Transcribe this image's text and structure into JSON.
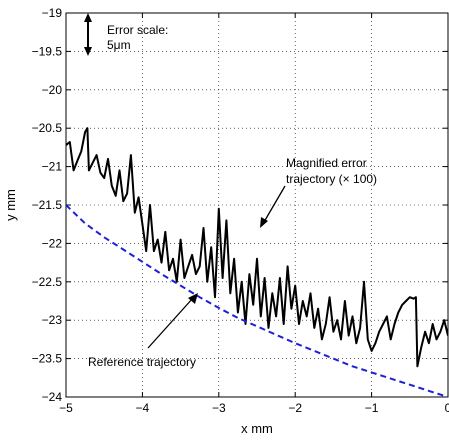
{
  "chart_data": {
    "type": "line",
    "xlabel": "x mm",
    "ylabel": "y mm",
    "xlim": [
      -5,
      0
    ],
    "ylim": [
      -24,
      -19
    ],
    "xticks": [
      -5,
      -4,
      -3,
      -2,
      -1,
      0
    ],
    "xtick_labels": [
      "−5",
      "−4",
      "−3",
      "−2",
      "−1",
      "0"
    ],
    "yticks": [
      -19,
      -19.5,
      -20,
      -20.5,
      -21,
      -21.5,
      -22,
      -22.5,
      -23,
      -23.5,
      -24
    ],
    "ytick_labels": [
      "−19",
      "−19.5",
      "−20",
      "−20.5",
      "−21",
      "−21.5",
      "−22",
      "−22.5",
      "−23",
      "−23.5",
      "−24"
    ],
    "grid": true,
    "series": [
      {
        "style": "solid",
        "color": "#000000",
        "x": [
          -5.0,
          -4.95,
          -4.9,
          -4.85,
          -4.8,
          -4.75,
          -4.72,
          -4.7,
          -4.65,
          -4.6,
          -4.55,
          -4.5,
          -4.45,
          -4.4,
          -4.35,
          -4.3,
          -4.25,
          -4.2,
          -4.15,
          -4.1,
          -4.05,
          -4.0,
          -3.95,
          -3.9,
          -3.85,
          -3.8,
          -3.75,
          -3.7,
          -3.65,
          -3.6,
          -3.55,
          -3.5,
          -3.45,
          -3.4,
          -3.35,
          -3.3,
          -3.25,
          -3.2,
          -3.15,
          -3.1,
          -3.05,
          -3.0,
          -2.95,
          -2.9,
          -2.85,
          -2.8,
          -2.75,
          -2.7,
          -2.65,
          -2.6,
          -2.55,
          -2.5,
          -2.45,
          -2.4,
          -2.35,
          -2.3,
          -2.25,
          -2.2,
          -2.15,
          -2.1,
          -2.05,
          -2.0,
          -1.95,
          -1.9,
          -1.85,
          -1.8,
          -1.75,
          -1.7,
          -1.65,
          -1.6,
          -1.55,
          -1.5,
          -1.45,
          -1.4,
          -1.35,
          -1.3,
          -1.25,
          -1.2,
          -1.15,
          -1.1,
          -1.05,
          -1.0,
          -0.95,
          -0.9,
          -0.85,
          -0.8,
          -0.75,
          -0.7,
          -0.65,
          -0.6,
          -0.55,
          -0.5,
          -0.45,
          -0.42,
          -0.4,
          -0.35,
          -0.3,
          -0.25,
          -0.2,
          -0.15,
          -0.1,
          -0.05,
          0.0
        ],
        "y": [
          -20.72,
          -20.68,
          -21.05,
          -20.92,
          -20.8,
          -20.55,
          -20.5,
          -21.05,
          -20.95,
          -20.85,
          -21.08,
          -21.15,
          -20.9,
          -21.25,
          -21.38,
          -21.05,
          -21.45,
          -21.35,
          -20.85,
          -21.6,
          -21.4,
          -21.75,
          -22.1,
          -21.5,
          -22.1,
          -21.95,
          -22.25,
          -21.85,
          -22.35,
          -22.2,
          -22.5,
          -21.95,
          -22.45,
          -22.3,
          -22.15,
          -22.4,
          -22.3,
          -21.8,
          -22.5,
          -22.05,
          -22.7,
          -21.55,
          -22.45,
          -21.7,
          -22.65,
          -22.2,
          -22.9,
          -22.5,
          -23.05,
          -22.4,
          -22.8,
          -22.2,
          -22.95,
          -22.45,
          -23.1,
          -22.65,
          -22.95,
          -22.45,
          -23.05,
          -22.3,
          -22.85,
          -22.55,
          -23.05,
          -22.75,
          -22.95,
          -22.65,
          -23.1,
          -22.85,
          -23.25,
          -23.05,
          -22.7,
          -23.15,
          -23.0,
          -23.25,
          -22.75,
          -23.2,
          -22.95,
          -23.3,
          -23.1,
          -22.5,
          -23.25,
          -23.4,
          -23.3,
          -23.15,
          -23.05,
          -22.95,
          -23.25,
          -23.05,
          -22.9,
          -22.8,
          -22.75,
          -22.7,
          -22.72,
          -22.7,
          -23.6,
          -23.35,
          -23.15,
          -23.3,
          -23.05,
          -23.25,
          -23.15,
          -23.0,
          -23.2
        ]
      },
      {
        "style": "dashed",
        "color": "#1f1fd8",
        "x": [
          -5.0,
          -4.75,
          -4.5,
          -4.25,
          -4.0,
          -3.75,
          -3.5,
          -3.25,
          -3.0,
          -2.75,
          -2.5,
          -2.25,
          -2.0,
          -1.75,
          -1.5,
          -1.25,
          -1.0,
          -0.75,
          -0.5,
          -0.25,
          0.0
        ],
        "y": [
          -21.5,
          -21.74,
          -21.92,
          -22.08,
          -22.24,
          -22.4,
          -22.55,
          -22.7,
          -22.84,
          -22.97,
          -23.08,
          -23.19,
          -23.3,
          -23.4,
          -23.5,
          -23.6,
          -23.68,
          -23.76,
          -23.84,
          -23.92,
          -24.0
        ]
      }
    ],
    "annotations": {
      "error_scale_line1": "Error scale:",
      "error_scale_line2": "5μm",
      "magnified_line1": "Magnified error",
      "magnified_line2": "trajectory  (× 100)",
      "reference": "Reference trajectory"
    }
  }
}
